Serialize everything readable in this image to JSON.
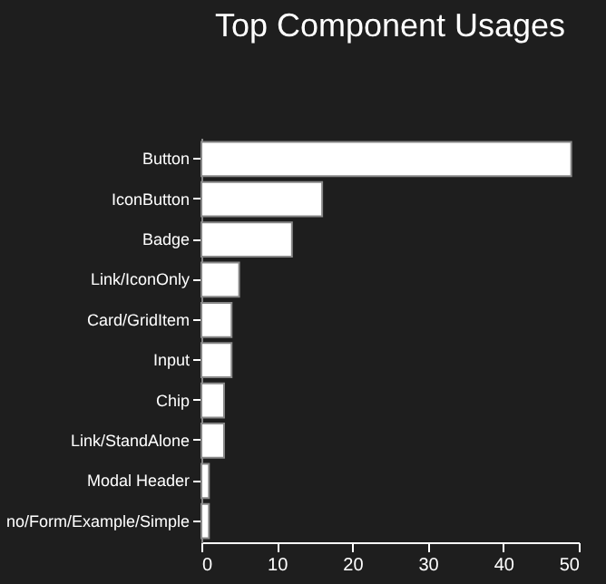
{
  "chart_data": {
    "type": "bar",
    "orientation": "horizontal",
    "title": "Top Component Usages",
    "categories": [
      "Button",
      "IconButton",
      "Badge",
      "Link/IconOnly",
      "Card/GridItem",
      "Input",
      "Chip",
      "Link/StandAlone",
      "Modal Header",
      "no/Form/Example/Simple"
    ],
    "values": [
      49,
      16,
      12,
      5,
      4,
      4,
      3,
      3,
      1,
      1
    ],
    "color": "#ffffff",
    "xlim": [
      0,
      50
    ],
    "xticks": [
      0,
      10,
      20,
      30,
      40,
      50
    ],
    "grid": false
  }
}
